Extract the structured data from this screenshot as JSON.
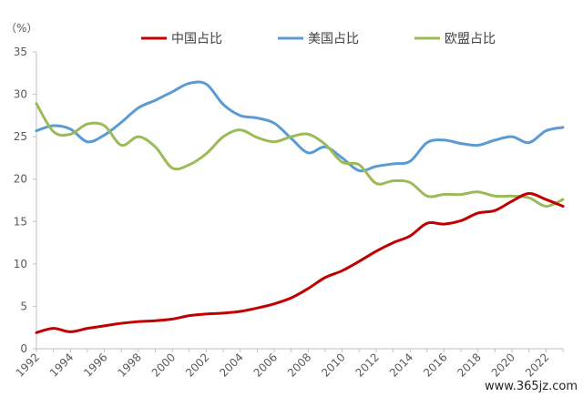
{
  "chart_data": {
    "type": "line",
    "unit_label": "（%）",
    "ylim": [
      0,
      35
    ],
    "yticks": [
      0,
      5,
      10,
      15,
      20,
      25,
      30,
      35
    ],
    "xlim": [
      1992,
      2023
    ],
    "xticks": [
      "1992",
      "1994",
      "1996",
      "1998",
      "2000",
      "2002",
      "2004",
      "2006",
      "2008",
      "2010",
      "2012",
      "2014",
      "2016",
      "2018",
      "2020",
      "2022"
    ],
    "legend_position": "top",
    "grid": false,
    "x": [
      1992,
      1993,
      1994,
      1995,
      1996,
      1997,
      1998,
      1999,
      2000,
      2001,
      2002,
      2003,
      2004,
      2005,
      2006,
      2007,
      2008,
      2009,
      2010,
      2011,
      2012,
      2013,
      2014,
      2015,
      2016,
      2017,
      2018,
      2019,
      2020,
      2021,
      2022,
      2023
    ],
    "series": [
      {
        "name": "中国占比",
        "color": "#C00000",
        "values": [
          1.9,
          2.4,
          2.0,
          2.4,
          2.7,
          3.0,
          3.2,
          3.3,
          3.5,
          3.9,
          4.1,
          4.2,
          4.4,
          4.8,
          5.3,
          6.0,
          7.1,
          8.4,
          9.2,
          10.3,
          11.5,
          12.5,
          13.3,
          14.8,
          14.7,
          15.1,
          16.0,
          16.3,
          17.4,
          18.3,
          17.6,
          16.8
        ]
      },
      {
        "name": "美国占比",
        "color": "#5B9BD5",
        "values": [
          25.7,
          26.3,
          25.9,
          24.4,
          25.2,
          26.7,
          28.4,
          29.3,
          30.3,
          31.3,
          31.2,
          28.8,
          27.5,
          27.2,
          26.6,
          24.8,
          23.1,
          23.8,
          22.5,
          21.0,
          21.5,
          21.8,
          22.1,
          24.3,
          24.6,
          24.2,
          24.0,
          24.6,
          25.0,
          24.3,
          25.7,
          26.1
        ]
      },
      {
        "name": "欧盟占比",
        "color": "#9BBB59",
        "values": [
          28.9,
          25.6,
          25.3,
          26.5,
          26.3,
          24.0,
          25.0,
          23.8,
          21.3,
          21.7,
          23.0,
          25.0,
          25.8,
          24.9,
          24.4,
          25.0,
          25.3,
          24.1,
          22.0,
          21.7,
          19.5,
          19.8,
          19.6,
          18.0,
          18.2,
          18.2,
          18.5,
          18.0,
          18.0,
          17.8,
          16.8,
          17.6
        ]
      }
    ]
  },
  "watermark": "www.365jz.com"
}
